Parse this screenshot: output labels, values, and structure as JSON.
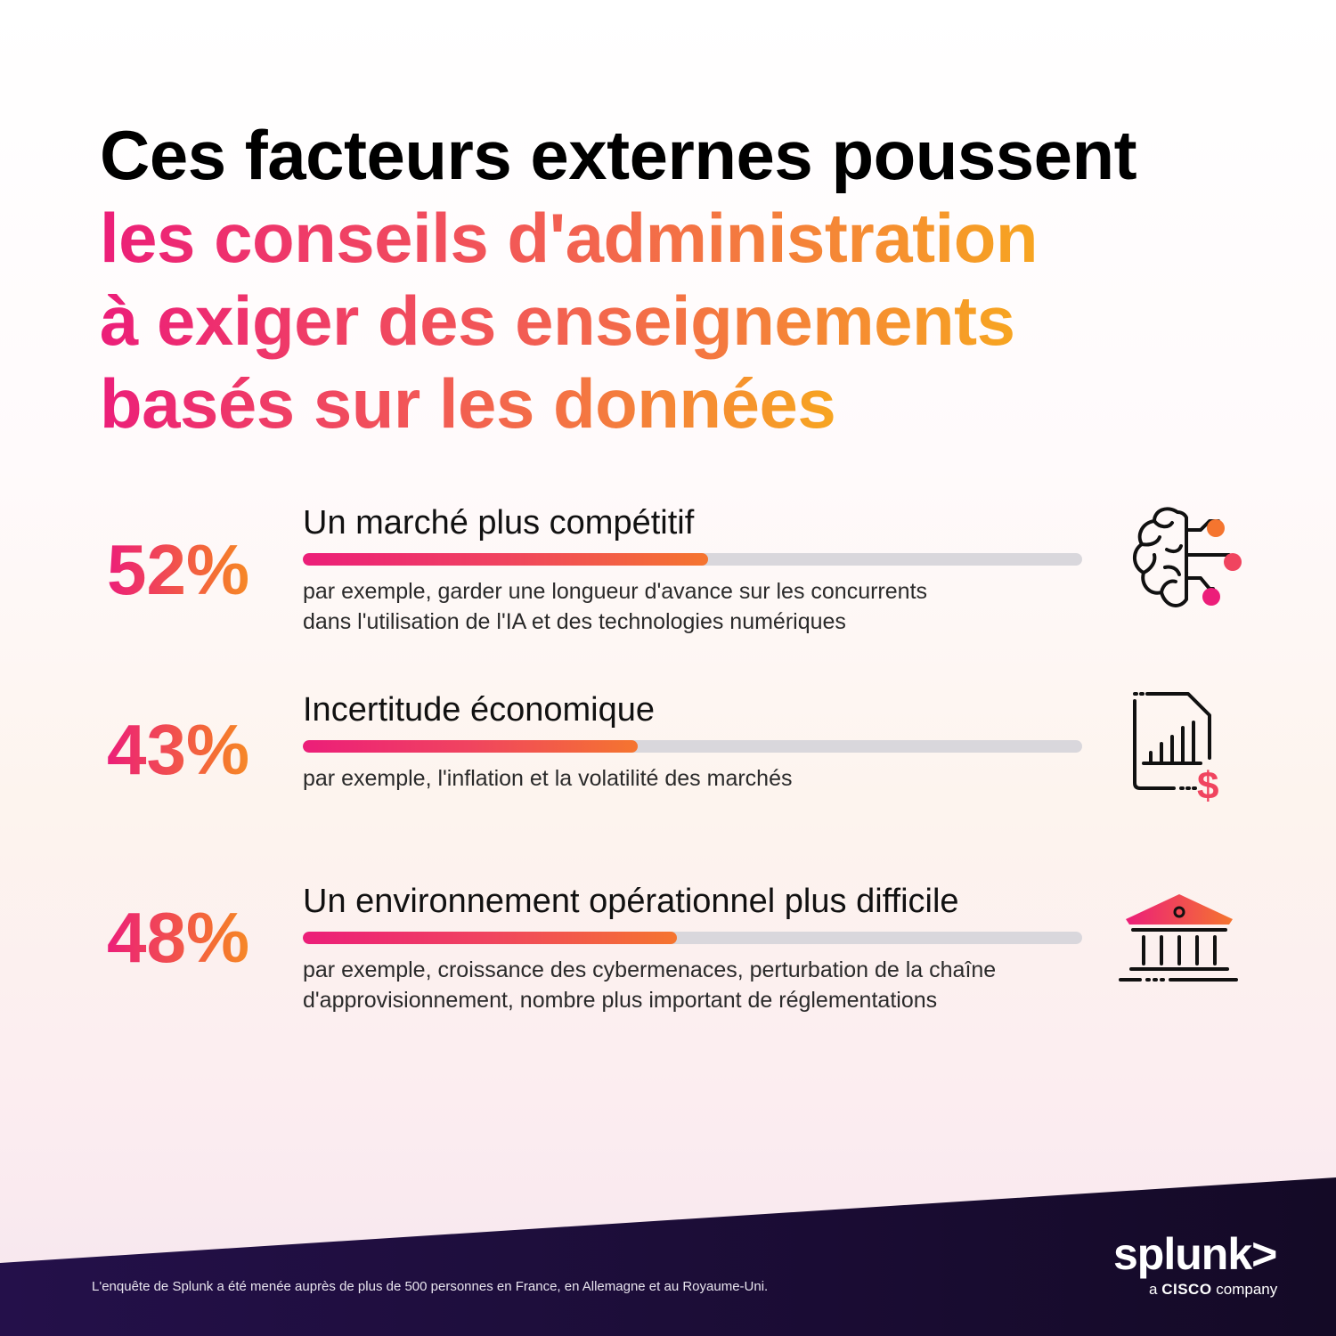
{
  "title": {
    "line1": "Ces facteurs externes poussent",
    "line2": "les conseils d'administration",
    "line3": "à exiger des enseignements",
    "line4": "basés sur les données"
  },
  "chart_data": {
    "type": "bar",
    "categories": [
      "Un marché plus compétitif",
      "Incertitude économique",
      "Un environnement opérationnel plus difficile"
    ],
    "values": [
      52,
      43,
      48
    ],
    "ylim": [
      0,
      100
    ]
  },
  "items": [
    {
      "pct_label": "52%",
      "heading": "Un marché plus compétitif",
      "desc_line1": "par exemple, garder une longueur d'avance sur les concurrents",
      "desc_line2": "dans l'utilisation de l'IA et des technologies numériques",
      "icon": "brain-network-icon"
    },
    {
      "pct_label": "43%",
      "heading": "Incertitude économique",
      "desc_line1": "par exemple, l'inflation et la volatilité des marchés",
      "desc_line2": "",
      "icon": "financial-report-icon"
    },
    {
      "pct_label": "48%",
      "heading": "Un environnement opérationnel plus difficile",
      "desc_line1": "par exemple, croissance des cybermenaces, perturbation de la chaîne",
      "desc_line2": "d'approvisionnement, nombre plus important de réglementations",
      "icon": "bank-building-icon"
    }
  ],
  "colors": {
    "accent_pink": "#ec1e79",
    "accent_orange": "#f5752f",
    "accent_yellow": "#f7a521",
    "bar_track": "#d9d7dc",
    "footer_dark": "#1c0d35"
  },
  "footer": {
    "note": "L'enquête de Splunk a été menée auprès de plus de 500 personnes en France, en Allemagne et au Royaume-Uni.",
    "logo_word": "splunk>",
    "logo_tag_a": "a",
    "logo_tag_cisco": "CISCO",
    "logo_tag_company": "company"
  }
}
